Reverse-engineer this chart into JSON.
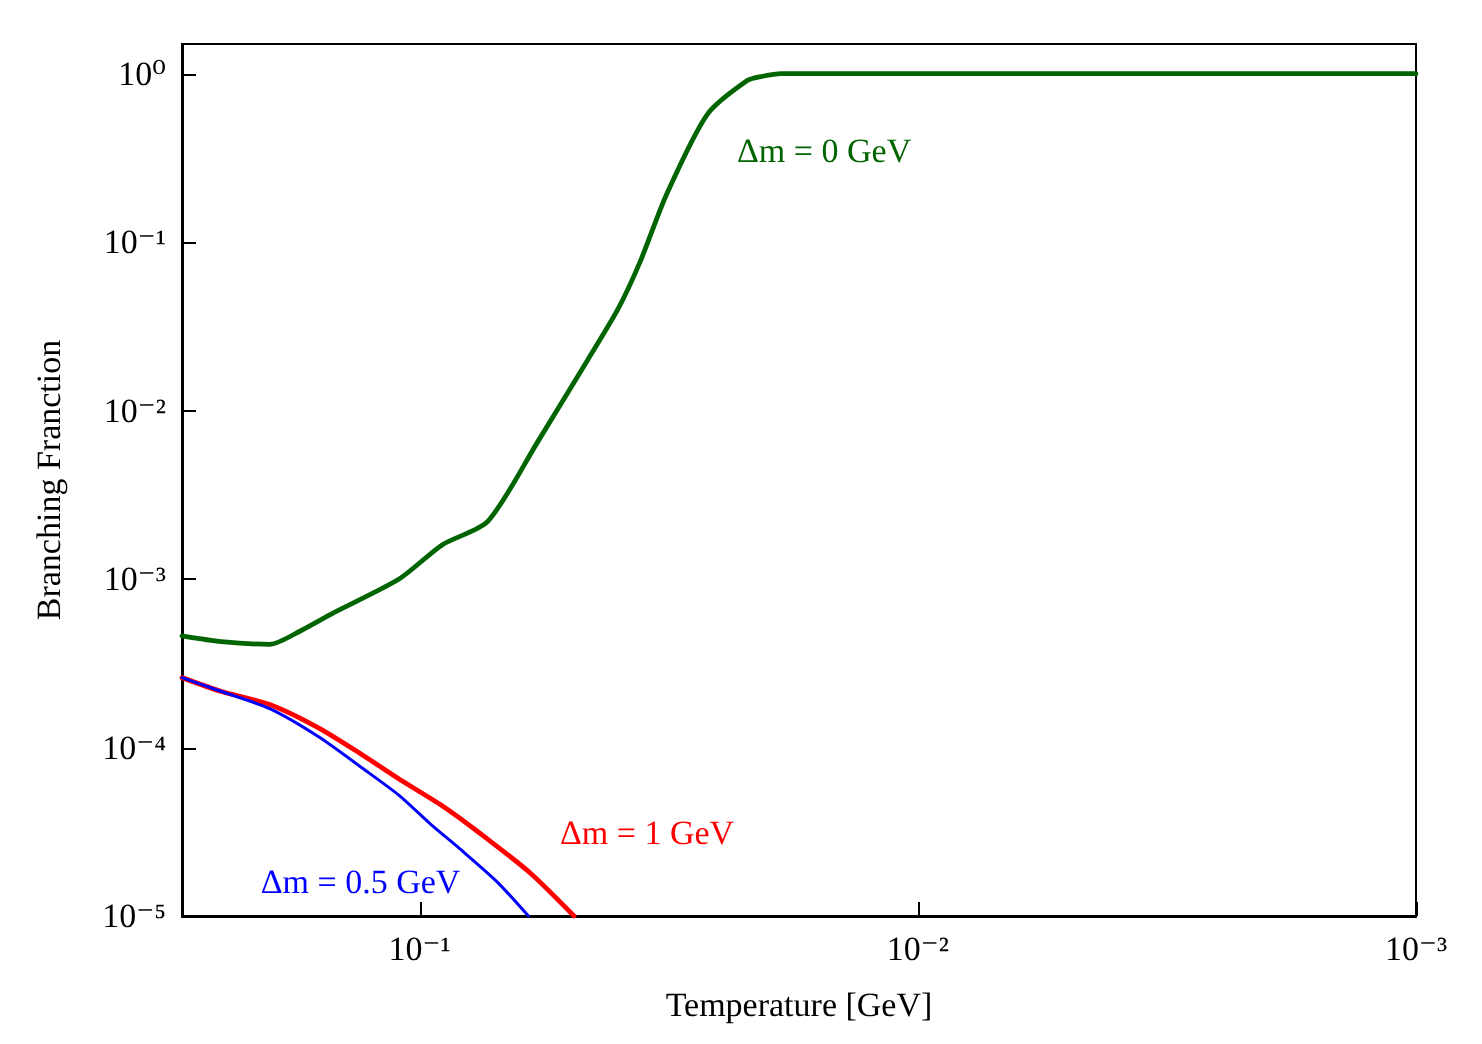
{
  "chart_data": {
    "type": "line",
    "xlabel": "Temperature [GeV]",
    "ylabel": "Branching Franction",
    "log": "xy",
    "grid": false,
    "marker": "none",
    "line_style": "solid",
    "xlim": [
      0.3,
      0.001
    ],
    "xticks": [
      {
        "value": 0.1,
        "label": "10⁻¹"
      },
      {
        "value": 0.01,
        "label": "10⁻²"
      },
      {
        "value": 0.001,
        "label": "10⁻³"
      }
    ],
    "ylim": [
      1e-05,
      1.5
    ],
    "yticks": [
      {
        "value": 1e-05,
        "label": "10⁻⁵"
      },
      {
        "value": 0.0001,
        "label": "10⁻⁴"
      },
      {
        "value": 0.001,
        "label": "10⁻³"
      },
      {
        "value": 0.01,
        "label": "10⁻²"
      },
      {
        "value": 0.1,
        "label": "10⁻¹"
      },
      {
        "value": 1,
        "label": "10⁰"
      }
    ],
    "series": [
      {
        "color": "#006400",
        "x": [
          0.3,
          0.25,
          0.2,
          0.174,
          0.149,
          0.11,
          0.09,
          0.073,
          0.058,
          0.046,
          0.04,
          0.036,
          0.032,
          0.0265,
          0.022,
          0.0205,
          0.0188,
          0.016,
          0.01,
          0.001
        ],
        "values": [
          0.00046,
          0.000425,
          0.00041,
          0.00049,
          0.00063,
          0.001,
          0.0016,
          0.0022,
          0.0065,
          0.02,
          0.04,
          0.078,
          0.19,
          0.57,
          0.91,
          0.965,
          1,
          1,
          1,
          1
        ]
      },
      {
        "color": "#ff0000",
        "x": [
          0.3,
          0.25,
          0.2,
          0.159,
          0.13,
          0.11,
          0.09,
          0.0757,
          0.06,
          0.049
        ],
        "values": [
          0.00026,
          0.000215,
          0.00018,
          0.00013,
          9e-05,
          6.5e-05,
          4.5e-05,
          3.1e-05,
          1.8e-05,
          1e-05
        ]
      },
      {
        "color": "#0000ff",
        "x": [
          0.3,
          0.25,
          0.2,
          0.159,
          0.13,
          0.11,
          0.095,
          0.083,
          0.07,
          0.0605
        ],
        "values": [
          0.00026,
          0.000215,
          0.00017,
          0.000115,
          7.5e-05,
          5.2e-05,
          3.5e-05,
          2.5e-05,
          1.6e-05,
          1e-05
        ]
      }
    ],
    "annotations": [
      {
        "text": "Δm = 0 GeV",
        "x": 0.0265,
        "y": 0.57
      },
      {
        "text": "Δm = 1 GeV",
        "x": 0.0757,
        "y": 3.1e-05
      },
      {
        "text": "Δm = 0.5 GeV",
        "x": 0.0605,
        "y": 1e-05
      }
    ]
  }
}
